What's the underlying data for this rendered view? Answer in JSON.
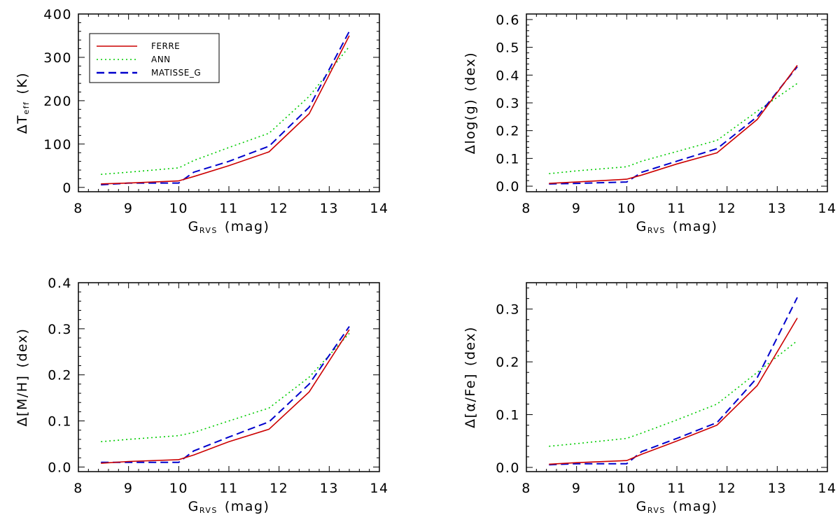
{
  "chart_data": [
    {
      "type": "line",
      "id": "teff",
      "xlabel_main": "G",
      "xlabel_sub": "RVS",
      "xlabel_rest": "(mag)",
      "ylabel_main": "ΔT",
      "ylabel_sub": "eff",
      "ylabel_rest": "(K)",
      "xlim": [
        8,
        14
      ],
      "ylim": [
        -10,
        400
      ],
      "xticks": [
        8,
        9,
        10,
        11,
        12,
        13,
        14
      ],
      "yticks": [
        0,
        100,
        200,
        300,
        400
      ],
      "ytick_labels": [
        "0",
        "100",
        "200",
        "300",
        "400"
      ],
      "legend": {
        "position": "top-left",
        "entries": [
          {
            "name": "FERRE",
            "series": "FERRE"
          },
          {
            "name": "ANN",
            "series": "ANN"
          },
          {
            "name": "MATISSE_G",
            "series": "MATISSE_G"
          }
        ]
      },
      "series": [
        {
          "name": "FERRE",
          "color": "#cc0000",
          "style": "solid",
          "x": [
            8.45,
            9.0,
            10.0,
            10.3,
            11.0,
            11.8,
            12.6,
            13.4
          ],
          "values": [
            8,
            10,
            15,
            25,
            50,
            82,
            170,
            350
          ]
        },
        {
          "name": "ANN",
          "color": "#00cc00",
          "style": "dotted",
          "x": [
            8.45,
            9.0,
            10.0,
            10.3,
            11.0,
            11.8,
            12.6,
            13.4
          ],
          "values": [
            30,
            35,
            45,
            62,
            92,
            125,
            210,
            325
          ]
        },
        {
          "name": "MATISSE_G",
          "color": "#0000cc",
          "style": "dashed",
          "x": [
            8.45,
            9.0,
            10.0,
            10.3,
            11.0,
            11.8,
            12.6,
            13.4
          ],
          "values": [
            6,
            10,
            10,
            35,
            60,
            95,
            185,
            360
          ]
        }
      ]
    },
    {
      "type": "line",
      "id": "logg",
      "xlabel_main": "G",
      "xlabel_sub": "RVS",
      "xlabel_rest": "(mag)",
      "ylabel_main": "Δlog(g)",
      "ylabel_sub": "",
      "ylabel_rest": "(dex)",
      "xlim": [
        8,
        14
      ],
      "ylim": [
        -0.02,
        0.62
      ],
      "xticks": [
        8,
        9,
        10,
        11,
        12,
        13,
        14
      ],
      "yticks": [
        0.0,
        0.1,
        0.2,
        0.3,
        0.4,
        0.5,
        0.6
      ],
      "ytick_labels": [
        "0.0",
        "0.1",
        "0.2",
        "0.3",
        "0.4",
        "0.5",
        "0.6"
      ],
      "series": [
        {
          "name": "FERRE",
          "color": "#cc0000",
          "style": "solid",
          "x": [
            8.45,
            9.0,
            10.0,
            10.3,
            11.0,
            11.8,
            12.6,
            13.4
          ],
          "values": [
            0.01,
            0.015,
            0.025,
            0.04,
            0.08,
            0.12,
            0.24,
            0.435
          ]
        },
        {
          "name": "ANN",
          "color": "#00cc00",
          "style": "dotted",
          "x": [
            8.45,
            9.0,
            10.0,
            10.3,
            11.0,
            11.8,
            12.6,
            13.4
          ],
          "values": [
            0.045,
            0.055,
            0.07,
            0.09,
            0.125,
            0.165,
            0.27,
            0.37
          ]
        },
        {
          "name": "MATISSE_G",
          "color": "#0000cc",
          "style": "dashed",
          "x": [
            8.45,
            9.0,
            10.0,
            10.3,
            11.0,
            11.8,
            12.6,
            13.4
          ],
          "values": [
            0.008,
            0.01,
            0.015,
            0.05,
            0.09,
            0.135,
            0.25,
            0.43
          ]
        }
      ]
    },
    {
      "type": "line",
      "id": "mh",
      "xlabel_main": "G",
      "xlabel_sub": "RVS",
      "xlabel_rest": "(mag)",
      "ylabel_main": "Δ[M/H]",
      "ylabel_sub": "",
      "ylabel_rest": "(dex)",
      "xlim": [
        8,
        14
      ],
      "ylim": [
        -0.01,
        0.4
      ],
      "xticks": [
        8,
        9,
        10,
        11,
        12,
        13,
        14
      ],
      "yticks": [
        0.0,
        0.1,
        0.2,
        0.3,
        0.4
      ],
      "ytick_labels": [
        "0.0",
        "0.1",
        "0.2",
        "0.3",
        "0.4"
      ],
      "series": [
        {
          "name": "FERRE",
          "color": "#cc0000",
          "style": "solid",
          "x": [
            8.45,
            9.0,
            10.0,
            10.3,
            11.0,
            11.8,
            12.6,
            13.4
          ],
          "values": [
            0.008,
            0.012,
            0.016,
            0.026,
            0.055,
            0.082,
            0.163,
            0.298
          ]
        },
        {
          "name": "ANN",
          "color": "#00cc00",
          "style": "dotted",
          "x": [
            8.45,
            9.0,
            10.0,
            10.3,
            11.0,
            11.8,
            12.6,
            13.4
          ],
          "values": [
            0.055,
            0.06,
            0.068,
            0.075,
            0.1,
            0.128,
            0.195,
            0.29
          ]
        },
        {
          "name": "MATISSE_G",
          "color": "#0000cc",
          "style": "dashed",
          "x": [
            8.45,
            9.0,
            10.0,
            10.3,
            11.0,
            11.8,
            12.6,
            13.4
          ],
          "values": [
            0.01,
            0.01,
            0.01,
            0.035,
            0.065,
            0.098,
            0.18,
            0.305
          ]
        }
      ]
    },
    {
      "type": "line",
      "id": "alphafe",
      "xlabel_main": "G",
      "xlabel_sub": "RVS",
      "xlabel_rest": "(mag)",
      "ylabel_main": "Δ[α/Fe]",
      "ylabel_sub": "",
      "ylabel_rest": "(dex)",
      "xlim": [
        8,
        14
      ],
      "ylim": [
        -0.008,
        0.35
      ],
      "xticks": [
        8,
        9,
        10,
        11,
        12,
        13,
        14
      ],
      "yticks": [
        0.0,
        0.1,
        0.2,
        0.3
      ],
      "ytick_labels": [
        "0.0",
        "0.1",
        "0.2",
        "0.3"
      ],
      "series": [
        {
          "name": "FERRE",
          "color": "#cc0000",
          "style": "solid",
          "x": [
            8.45,
            9.0,
            10.0,
            10.3,
            11.0,
            11.8,
            12.6,
            13.4
          ],
          "values": [
            0.006,
            0.009,
            0.013,
            0.025,
            0.05,
            0.08,
            0.155,
            0.283
          ]
        },
        {
          "name": "ANN",
          "color": "#00cc00",
          "style": "dotted",
          "x": [
            8.45,
            9.0,
            10.0,
            10.3,
            11.0,
            11.8,
            12.6,
            13.4
          ],
          "values": [
            0.04,
            0.045,
            0.055,
            0.065,
            0.09,
            0.12,
            0.18,
            0.24
          ]
        },
        {
          "name": "MATISSE_G",
          "color": "#0000cc",
          "style": "dashed",
          "x": [
            8.45,
            9.0,
            10.0,
            10.3,
            11.0,
            11.8,
            12.6,
            13.4
          ],
          "values": [
            0.005,
            0.007,
            0.007,
            0.03,
            0.055,
            0.085,
            0.17,
            0.322
          ]
        }
      ]
    }
  ]
}
